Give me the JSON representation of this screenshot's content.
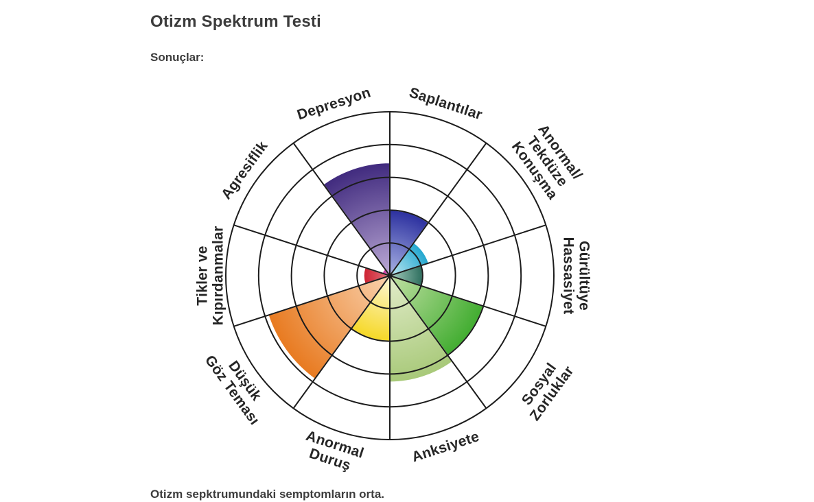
{
  "page": {
    "title": "Otizm Spektrum Testi",
    "results_label": "Sonuçlar:",
    "caption": "Otizm sepktrumundaki semptomların orta."
  },
  "chart_data": {
    "type": "polar_area",
    "title": "Otizm Spektrum Testi",
    "scale_max": 10,
    "ring_count": 5,
    "sector_angle_deg": 36,
    "start_angle_deg": 0,
    "grid_on": true,
    "grid_color": "#1c1c1c",
    "label_color": "#262626",
    "wedge_outline_color": "#ffffff",
    "categories": [
      "Saplantılar",
      "Anormal/Tekdüze Konuşma",
      "Gürültüye Hassasiyet",
      "Sosyal Zorluklar",
      "Anksiyete",
      "Anormal Duruş",
      "Düşük Göz Teması",
      "Tikler ve Kıpırdanmalar",
      "Agresiflik",
      "Depresyon"
    ],
    "values": [
      4.0,
      2.5,
      2.0,
      6.0,
      6.5,
      4.0,
      7.8,
      1.6,
      0.5,
      6.9
    ],
    "sectors": [
      {
        "label_lines": [
          "Saplantılar"
        ],
        "value": 4.0,
        "color": "#2c309f",
        "inner_color": "#aab4e4"
      },
      {
        "label_lines": [
          "Anormal/",
          "Tekdüze",
          "Konuşma"
        ],
        "value": 2.5,
        "color": "#22a7cf",
        "inner_color": "#c3e9f2"
      },
      {
        "label_lines": [
          "Gürültüye",
          "Hassasiyet"
        ],
        "value": 2.0,
        "color": "#2d6e5e",
        "inner_color": "#a8cfc0"
      },
      {
        "label_lines": [
          "Sosyal",
          "Zorluklar"
        ],
        "value": 6.0,
        "color": "#42ad31",
        "inner_color": "#c2e0a4"
      },
      {
        "label_lines": [
          "Anksiyete"
        ],
        "value": 6.5,
        "color": "#a8c979",
        "inner_color": "#e2ecca"
      },
      {
        "label_lines": [
          "Anormal",
          "Duruş"
        ],
        "value": 4.0,
        "color": "#f6d826",
        "inner_color": "#fdf7d8"
      },
      {
        "label_lines": [
          "Düşük",
          "Göz Teması"
        ],
        "value": 7.8,
        "color": "#e87a20",
        "inner_color": "#f9d2ae"
      },
      {
        "label_lines": [
          "Tikler ve",
          "Kıpırdanmalar"
        ],
        "value": 1.6,
        "color": "#ce2130",
        "inner_color": "#e2747e"
      },
      {
        "label_lines": [
          "Agresiflik"
        ],
        "value": 0.5,
        "color": "#c9319f",
        "inner_color": "#dd7ec6"
      },
      {
        "label_lines": [
          "Depresyon"
        ],
        "value": 6.9,
        "color": "#402a7e",
        "inner_color": "#bcaad6"
      }
    ]
  }
}
